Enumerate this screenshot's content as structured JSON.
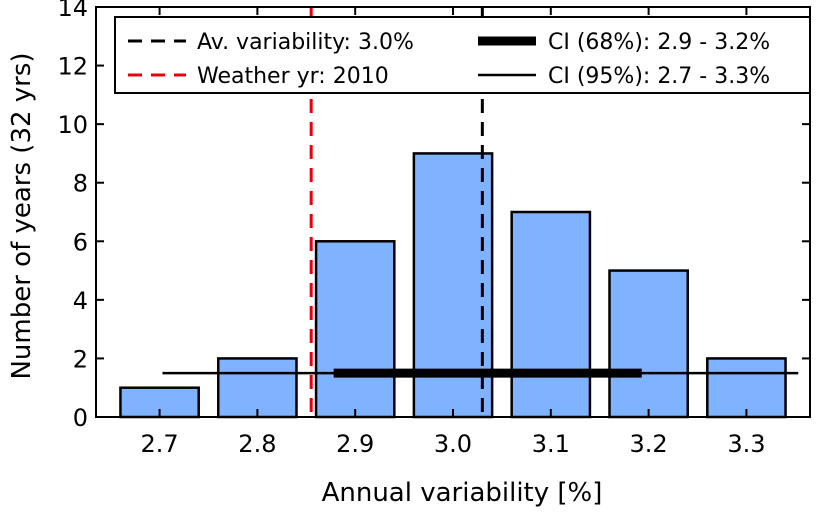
{
  "chart_data": {
    "type": "bar",
    "xlabel": "Annual variability [%]",
    "ylabel": "Number of years (32 yrs)",
    "ylim": [
      0,
      14
    ],
    "xlim": [
      2.635,
      3.365
    ],
    "yticks": [
      0,
      2,
      4,
      6,
      8,
      10,
      12,
      14
    ],
    "xticks": [
      2.7,
      2.8,
      2.9,
      3.0,
      3.1,
      3.2,
      3.3
    ],
    "xtick_labels": [
      "2.7",
      "2.8",
      "2.9",
      "3.0",
      "3.1",
      "3.2",
      "3.3"
    ],
    "bar_width": 0.08,
    "bars": [
      {
        "x": 2.7,
        "value": 1
      },
      {
        "x": 2.8,
        "value": 2
      },
      {
        "x": 2.9,
        "value": 6
      },
      {
        "x": 3.0,
        "value": 9
      },
      {
        "x": 3.1,
        "value": 7
      },
      {
        "x": 3.2,
        "value": 5
      },
      {
        "x": 3.3,
        "value": 2
      }
    ],
    "bar_color": "#80b3ff",
    "vlines": [
      {
        "name": "average",
        "x": 3.03,
        "color": "#000000"
      },
      {
        "name": "weather-year",
        "x": 2.855,
        "color": "#e8000b"
      }
    ],
    "ci_lines": [
      {
        "name": "ci-68",
        "x_start": 2.878,
        "x_end": 3.193,
        "y": 1.5,
        "weight": "thick"
      },
      {
        "name": "ci-95",
        "x_start": 2.703,
        "x_end": 3.353,
        "y": 1.5,
        "weight": "thin"
      }
    ],
    "legend": {
      "location": "top",
      "entries": [
        {
          "label": "Av. variability: 3.0%",
          "style": "dashed",
          "color": "#000000"
        },
        {
          "label": "CI (68%): 2.9 - 3.2%",
          "style": "thick",
          "color": "#000000"
        },
        {
          "label": "Weather yr: 2010",
          "style": "dashed",
          "color": "#e8000b"
        },
        {
          "label": "CI (95%): 2.7 - 3.3%",
          "style": "thin",
          "color": "#000000"
        }
      ]
    }
  }
}
